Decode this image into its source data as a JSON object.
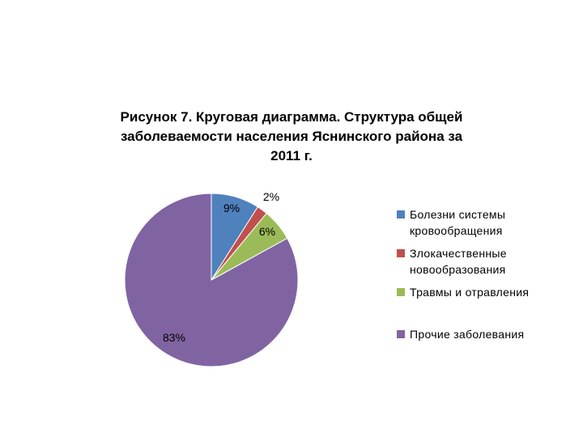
{
  "chart_data": {
    "type": "pie",
    "title_lines": [
      "Рисунок 7. Круговая диаграмма. Структура общей",
      "заболеваемости населения Яснинского района за",
      "2011 г."
    ],
    "slices": [
      {
        "label_lines": [
          "Болезни системы",
          "кровообращения"
        ],
        "value": 9,
        "value_label": "9%",
        "color": "#4F81BD"
      },
      {
        "label_lines": [
          "Злокачественные",
          "новообразования"
        ],
        "value": 2,
        "value_label": "2%",
        "color": "#C0504D"
      },
      {
        "label_lines": [
          "Травмы и отравления"
        ],
        "value": 6,
        "value_label": "6%",
        "color": "#9BBB59"
      },
      {
        "label_lines": [
          "Прочие заболевания"
        ],
        "value": 83,
        "value_label": "83%",
        "color": "#8064A2"
      }
    ],
    "legend_position": "right"
  }
}
